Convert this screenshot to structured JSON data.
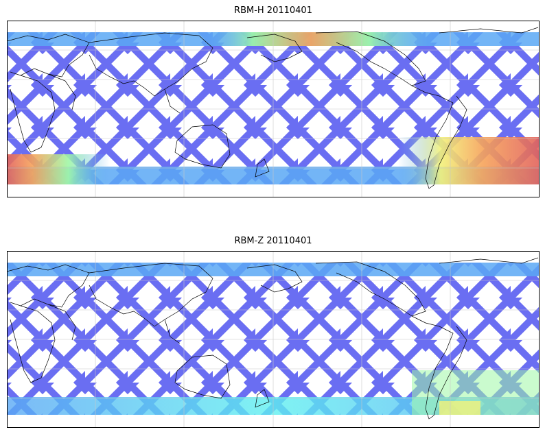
{
  "panels": [
    {
      "title": "RBM-H 20110401",
      "hot_regions": true
    },
    {
      "title": "RBM-Z 20110401",
      "hot_regions": false
    }
  ],
  "colors": {
    "track_low": "#6a6ef2",
    "track_mid": "#5aa8f5",
    "track_cyan": "#5ff0f0",
    "track_green": "#9ff7a6",
    "track_yellow": "#f2f27a",
    "track_orange": "#f6a35a",
    "track_red": "#e2625c",
    "coast": "#000000",
    "grid": "#c8c8c8"
  }
}
